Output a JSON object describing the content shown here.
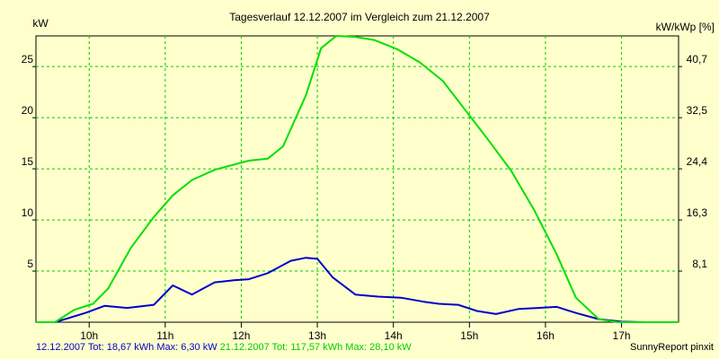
{
  "chart_data": {
    "type": "line",
    "title": "Tagesverlauf 12.12.2007 im Vergleich zum 21.12.2007",
    "ylabel_left": "kW",
    "ylabel_right": "kW/kWp [%]",
    "xlim": [
      9.3,
      17.75
    ],
    "ylim": [
      0,
      28
    ],
    "x_ticks": [
      10,
      11,
      12,
      13,
      14,
      15,
      16,
      17
    ],
    "x_tick_labels": [
      "10h",
      "11h",
      "12h",
      "13h",
      "14h",
      "15h",
      "16h",
      "17h"
    ],
    "y_ticks_left": [
      5,
      10,
      15,
      20,
      25
    ],
    "y_tick_labels_left": [
      "5",
      "10",
      "15",
      "20",
      "25"
    ],
    "y_ticks_right": [
      5,
      10,
      15,
      20,
      25
    ],
    "y_tick_labels_right": [
      "8,1",
      "16,3",
      "24,4",
      "32,5",
      "40,7"
    ],
    "grid": true,
    "grid_color": "#00cc00",
    "series": [
      {
        "color": "#0000cc",
        "x": [
          9.3,
          9.55,
          9.95,
          10.2,
          10.5,
          10.85,
          11.1,
          11.35,
          11.65,
          11.9,
          12.1,
          12.35,
          12.65,
          12.85,
          13.0,
          13.2,
          13.5,
          13.8,
          14.1,
          14.4,
          14.6,
          14.85,
          15.1,
          15.35,
          15.65,
          15.9,
          16.15,
          16.4,
          16.7,
          17.0,
          17.3,
          17.75
        ],
        "values": [
          0,
          0,
          0.9,
          1.6,
          1.4,
          1.7,
          3.6,
          2.7,
          3.9,
          4.1,
          4.2,
          4.8,
          6.0,
          6.3,
          6.2,
          4.4,
          2.7,
          2.5,
          2.4,
          2.0,
          1.8,
          1.7,
          1.1,
          0.8,
          1.3,
          1.4,
          1.5,
          0.9,
          0.3,
          0.05,
          0,
          0
        ]
      },
      {
        "color": "#00e000",
        "x": [
          9.3,
          9.55,
          9.8,
          10.05,
          10.25,
          10.55,
          10.85,
          11.1,
          11.35,
          11.65,
          11.9,
          12.1,
          12.35,
          12.55,
          12.85,
          13.05,
          13.25,
          13.5,
          13.75,
          14.05,
          14.35,
          14.65,
          14.95,
          15.25,
          15.55,
          15.85,
          16.15,
          16.4,
          16.7,
          16.95,
          17.3,
          17.75
        ],
        "values": [
          0,
          0,
          1.2,
          1.8,
          3.3,
          7.3,
          10.3,
          12.4,
          13.9,
          14.9,
          15.4,
          15.8,
          16.0,
          17.2,
          22.2,
          26.8,
          28.0,
          27.9,
          27.6,
          26.7,
          25.4,
          23.6,
          20.7,
          17.8,
          14.8,
          11.0,
          6.6,
          2.4,
          0.3,
          0,
          0,
          0
        ]
      }
    ]
  },
  "footer": {
    "series1_text": "12.12.2007 Tot: 18,67 kWh Max: 6,30 kW",
    "series1_color": "#0000cc",
    "series2_text": "21.12.2007 Tot: 117,57 kWh Max: 28,10 kW",
    "series2_color": "#00cc00",
    "brand": "SunnyReport pinxit"
  }
}
